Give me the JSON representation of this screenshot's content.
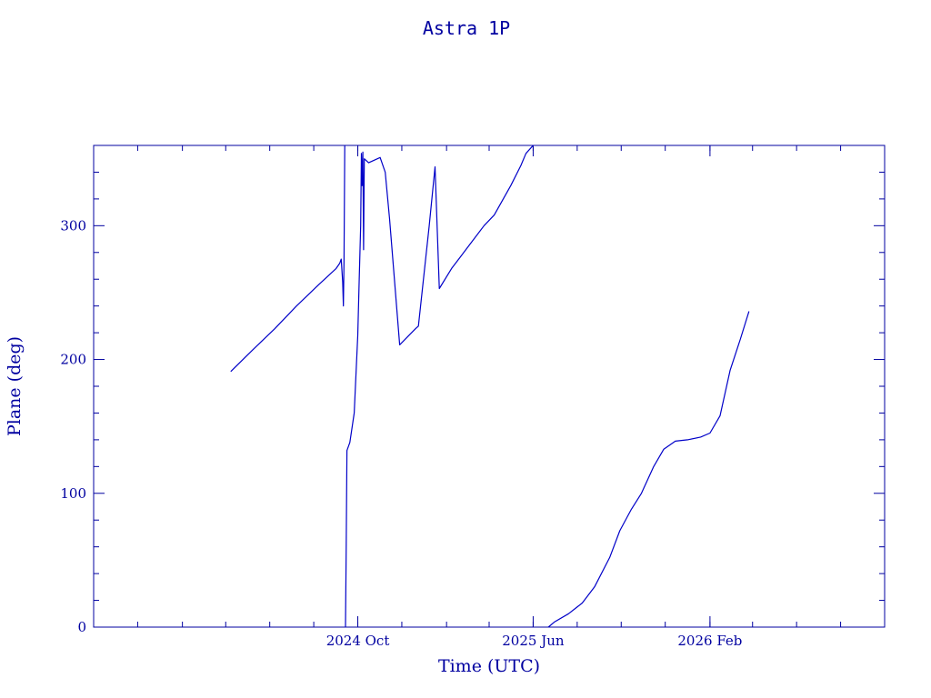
{
  "chart_data": {
    "type": "line",
    "title": "Astra 1P",
    "xlabel": "Time (UTC)",
    "ylabel": "Plane (deg)",
    "xlim": [
      "2023-10-01",
      "2026-10-01"
    ],
    "ylim": [
      0,
      360
    ],
    "x_ticks": [
      {
        "date": "2024-10-01",
        "label": "2024 Oct"
      },
      {
        "date": "2025-06-01",
        "label": "2025 Jun"
      },
      {
        "date": "2026-02-01",
        "label": "2026 Feb"
      }
    ],
    "y_ticks": [
      0,
      100,
      200,
      300
    ],
    "grid": false,
    "series": [
      {
        "points": [
          [
            "2024-04-08",
            191
          ],
          [
            "2024-05-08",
            207
          ],
          [
            "2024-06-08",
            223
          ],
          [
            "2024-07-08",
            240
          ],
          [
            "2024-08-08",
            256
          ],
          [
            "2024-09-01",
            268
          ],
          [
            "2024-09-06",
            272
          ],
          [
            "2024-09-08",
            275
          ],
          [
            "2024-09-10",
            258
          ],
          [
            "2024-09-11",
            240
          ],
          [
            "2024-09-12",
            275
          ],
          [
            "2024-09-13",
            360
          ]
        ]
      },
      {
        "points": [
          [
            "2024-09-14",
            0
          ],
          [
            "2024-09-15",
            60
          ],
          [
            "2024-09-16",
            132
          ],
          [
            "2024-09-20",
            138
          ],
          [
            "2024-09-26",
            160
          ],
          [
            "2024-10-01",
            218
          ],
          [
            "2024-10-03",
            260
          ],
          [
            "2024-10-05",
            300
          ],
          [
            "2024-10-06",
            354
          ],
          [
            "2024-10-07",
            330
          ],
          [
            "2024-10-08",
            355
          ],
          [
            "2024-10-09",
            282
          ],
          [
            "2024-10-10",
            350
          ],
          [
            "2024-10-16",
            347
          ],
          [
            "2024-10-24",
            349
          ],
          [
            "2024-11-01",
            351
          ],
          [
            "2024-11-08",
            340
          ],
          [
            "2024-11-14",
            305
          ],
          [
            "2024-11-28",
            211
          ],
          [
            "2024-12-20",
            223
          ],
          [
            "2024-12-24",
            225
          ],
          [
            "2025-01-08",
            300
          ],
          [
            "2025-01-16",
            344
          ],
          [
            "2025-01-22",
            253
          ],
          [
            "2025-02-08",
            268
          ],
          [
            "2025-03-01",
            283
          ],
          [
            "2025-03-25",
            300
          ],
          [
            "2025-04-08",
            308
          ],
          [
            "2025-05-01",
            330
          ],
          [
            "2025-05-15",
            345
          ],
          [
            "2025-05-22",
            354
          ],
          [
            "2025-06-01",
            360
          ]
        ]
      },
      {
        "points": [
          [
            "2025-06-22",
            0
          ],
          [
            "2025-07-01",
            4
          ],
          [
            "2025-07-20",
            10
          ],
          [
            "2025-08-08",
            18
          ],
          [
            "2025-08-25",
            30
          ],
          [
            "2025-09-15",
            52
          ],
          [
            "2025-09-29",
            72
          ],
          [
            "2025-10-15",
            88
          ],
          [
            "2025-10-29",
            100
          ],
          [
            "2025-11-15",
            120
          ],
          [
            "2025-11-29",
            133
          ],
          [
            "2025-12-15",
            139
          ],
          [
            "2026-01-01",
            140
          ],
          [
            "2026-01-19",
            142
          ],
          [
            "2026-02-01",
            145
          ],
          [
            "2026-02-15",
            158
          ],
          [
            "2026-03-01",
            192
          ],
          [
            "2026-03-15",
            215
          ],
          [
            "2026-03-27",
            236
          ]
        ]
      }
    ]
  }
}
